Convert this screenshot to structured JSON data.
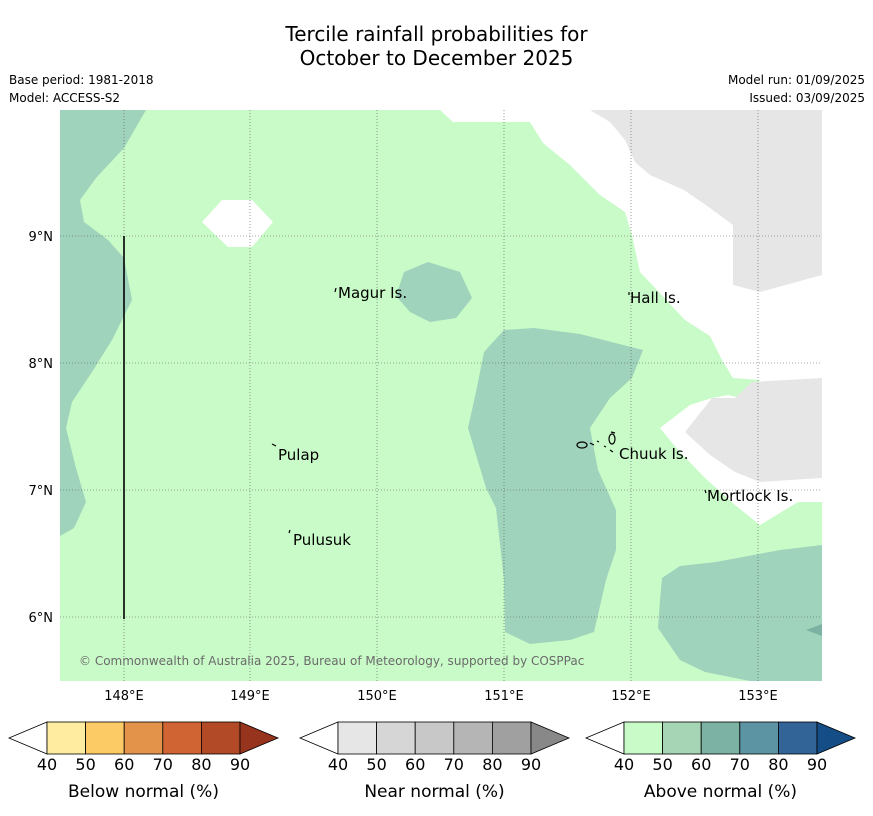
{
  "title_line1": "Tercile rainfall probabilities for",
  "title_line2": "October to December 2025",
  "base_period": "Base period: 1981-2018",
  "model": "Model: ACCESS-S2",
  "model_run": "Model run: 01/09/2025",
  "issued": "Issued: 03/09/2025",
  "copyright": "© Commonwealth of Australia 2025, Bureau of Meteorology, supported by COSPPac",
  "lon_labels": [
    "148°E",
    "149°E",
    "150°E",
    "151°E",
    "152°E",
    "153°E"
  ],
  "lat_labels": [
    "9°N",
    "8°N",
    "7°N",
    "6°N"
  ],
  "places": [
    {
      "name": "Magur Is."
    },
    {
      "name": "Hall Is."
    },
    {
      "name": "Pulap"
    },
    {
      "name": "Chuuk Is."
    },
    {
      "name": "Mortlock Is."
    },
    {
      "name": "Pulusuk"
    }
  ],
  "colorbars": [
    {
      "title": "Below normal (%)",
      "ticks": [
        "40",
        "50",
        "60",
        "70",
        "80",
        "90"
      ],
      "colors": [
        "#ffffff",
        "#ffeca0",
        "#fdcb66",
        "#e3944a",
        "#d06433",
        "#b24a27",
        "#97341d"
      ]
    },
    {
      "title": "Near normal (%)",
      "ticks": [
        "40",
        "50",
        "60",
        "70",
        "80",
        "90"
      ],
      "colors": [
        "#ffffff",
        "#e6e6e6",
        "#d6d6d6",
        "#c8c8c8",
        "#b5b5b5",
        "#a0a0a0",
        "#888888"
      ]
    },
    {
      "title": "Above normal (%)",
      "ticks": [
        "40",
        "50",
        "60",
        "70",
        "80",
        "90"
      ],
      "colors": [
        "#ffffff",
        "#c9fbc8",
        "#a5d5b4",
        "#7cb2a4",
        "#5d94a4",
        "#336498",
        "#154d86"
      ]
    }
  ],
  "colors": {
    "above_40_50": "#c9fbc8",
    "above_50_60": "#9fd3bb",
    "near_40_50": "#e6e6e6",
    "neutral": "#ffffff"
  }
}
